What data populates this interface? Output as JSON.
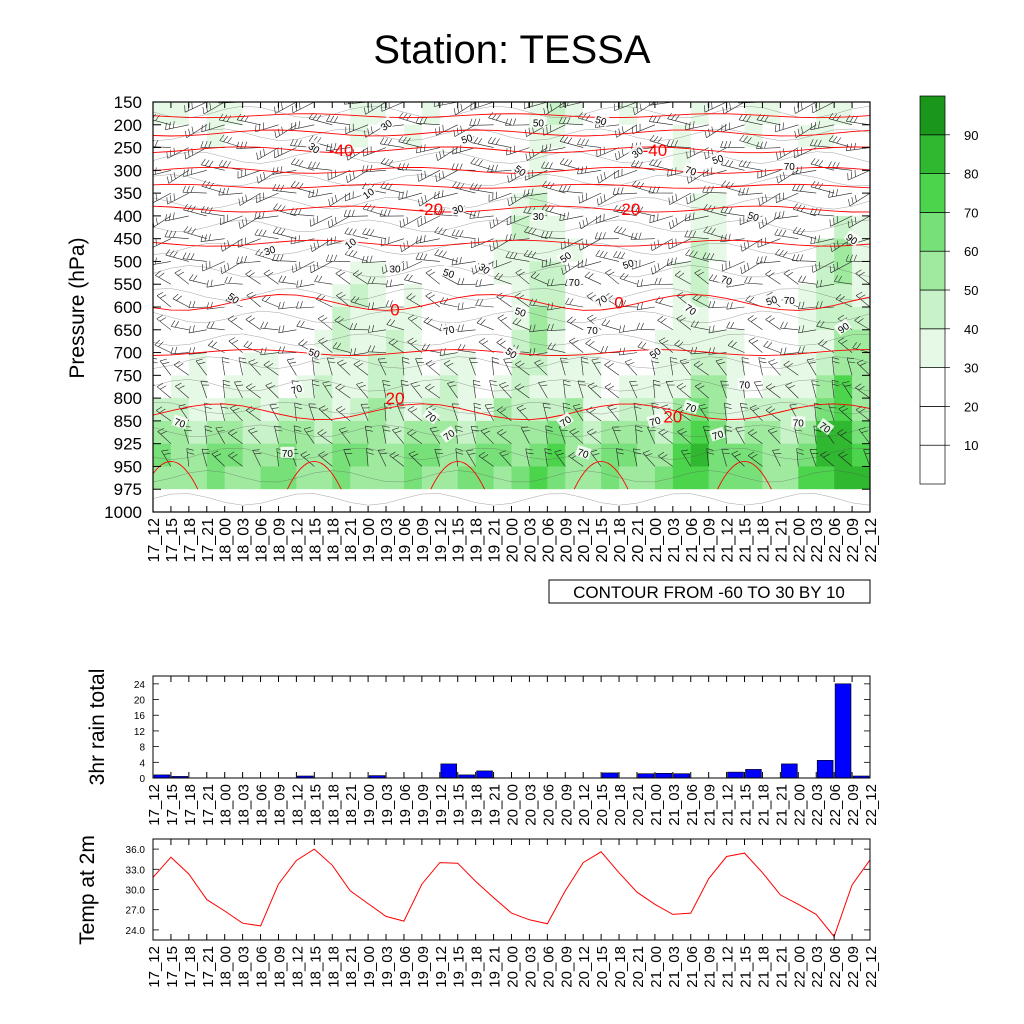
{
  "title": "Station: TESSA",
  "time_labels": [
    "17_12",
    "17_15",
    "17_18",
    "17_21",
    "18_00",
    "18_03",
    "18_06",
    "18_09",
    "18_12",
    "18_15",
    "18_18",
    "18_21",
    "19_00",
    "19_03",
    "19_06",
    "19_09",
    "19_12",
    "19_15",
    "19_18",
    "19_21",
    "20_00",
    "20_03",
    "20_06",
    "20_09",
    "20_12",
    "20_15",
    "20_18",
    "20_21",
    "21_00",
    "21_03",
    "21_06",
    "21_09",
    "21_12",
    "21_15",
    "21_18",
    "21_21",
    "22_00",
    "22_03",
    "22_06",
    "22_09",
    "22_12"
  ],
  "chart_data": [
    {
      "type": "heatmap",
      "name": "pressure-time-cross-section",
      "ylabel": "Pressure (hPa)",
      "pressure_levels": [
        150,
        200,
        250,
        300,
        350,
        400,
        450,
        500,
        550,
        600,
        650,
        700,
        750,
        800,
        850,
        925,
        950,
        975,
        1000
      ],
      "info_box": "CONTOUR FROM -60 TO 30 BY 10",
      "colorbar": {
        "levels": [
          10,
          20,
          30,
          40,
          50,
          60,
          70,
          80,
          90
        ],
        "labels": [
          "10",
          "20",
          "30",
          "40",
          "50",
          "60",
          "70",
          "80",
          "90"
        ],
        "colors": [
          "#ffffff",
          "#ffffff",
          "#ffffff",
          "#e6f9e6",
          "#c8f2c8",
          "#a0eaa0",
          "#78e078",
          "#4cd44c",
          "#30b830",
          "#1a961a"
        ]
      },
      "temperature_contours": [
        {
          "label": "-40",
          "pressure": 255,
          "x_index": 10.5
        },
        {
          "label": "-40",
          "pressure": 255,
          "x_index": 28.0
        },
        {
          "label": "-20",
          "pressure": 385,
          "x_index": 15.5
        },
        {
          "label": "-20",
          "pressure": 385,
          "x_index": 26.5
        },
        {
          "label": "0",
          "pressure": 605,
          "x_index": 13.5
        },
        {
          "label": "0",
          "pressure": 590,
          "x_index": 26.0
        },
        {
          "label": "20",
          "pressure": 800,
          "x_index": 13.5
        },
        {
          "label": "20",
          "pressure": 840,
          "x_index": 29.0
        }
      ],
      "humidity_labels": [
        {
          "label": "30",
          "pressure": 200,
          "x_index": 13.0
        },
        {
          "label": "50",
          "pressure": 230,
          "x_index": 17.5
        },
        {
          "label": "50",
          "pressure": 195,
          "x_index": 21.5
        },
        {
          "label": "50",
          "pressure": 190,
          "x_index": 25.0
        },
        {
          "label": "30",
          "pressure": 250,
          "x_index": 9.0
        },
        {
          "label": "30",
          "pressure": 260,
          "x_index": 27.0
        },
        {
          "label": "50",
          "pressure": 275,
          "x_index": 31.5
        },
        {
          "label": "70",
          "pressure": 290,
          "x_index": 35.5
        },
        {
          "label": "70",
          "pressure": 300,
          "x_index": 30.0
        },
        {
          "label": "50",
          "pressure": 300,
          "x_index": 20.5
        },
        {
          "label": "10",
          "pressure": 350,
          "x_index": 12.0
        },
        {
          "label": "30",
          "pressure": 385,
          "x_index": 17.0
        },
        {
          "label": "30",
          "pressure": 400,
          "x_index": 21.5
        },
        {
          "label": "50",
          "pressure": 400,
          "x_index": 33.5
        },
        {
          "label": "90",
          "pressure": 450,
          "x_index": 39.0
        },
        {
          "label": "10",
          "pressure": 460,
          "x_index": 11.0
        },
        {
          "label": "30",
          "pressure": 475,
          "x_index": 6.5
        },
        {
          "label": "30",
          "pressure": 515,
          "x_index": 13.5
        },
        {
          "label": "50",
          "pressure": 525,
          "x_index": 16.5
        },
        {
          "label": "30",
          "pressure": 515,
          "x_index": 18.5
        },
        {
          "label": "50",
          "pressure": 490,
          "x_index": 23.0
        },
        {
          "label": "50",
          "pressure": 505,
          "x_index": 26.5
        },
        {
          "label": "70",
          "pressure": 545,
          "x_index": 23.5
        },
        {
          "label": "70",
          "pressure": 540,
          "x_index": 32.0
        },
        {
          "label": "50",
          "pressure": 580,
          "x_index": 4.5
        },
        {
          "label": "70",
          "pressure": 585,
          "x_index": 25.0
        },
        {
          "label": "50",
          "pressure": 585,
          "x_index": 34.5
        },
        {
          "label": "70",
          "pressure": 585,
          "x_index": 35.5
        },
        {
          "label": "50",
          "pressure": 610,
          "x_index": 20.5
        },
        {
          "label": "70",
          "pressure": 605,
          "x_index": 30.0
        },
        {
          "label": "90",
          "pressure": 645,
          "x_index": 38.5
        },
        {
          "label": "70",
          "pressure": 650,
          "x_index": 16.5
        },
        {
          "label": "70",
          "pressure": 650,
          "x_index": 24.5
        },
        {
          "label": "50",
          "pressure": 700,
          "x_index": 9.0
        },
        {
          "label": "50",
          "pressure": 700,
          "x_index": 20.0
        },
        {
          "label": "50",
          "pressure": 700,
          "x_index": 28.0
        },
        {
          "label": "70",
          "pressure": 780,
          "x_index": 8.0
        },
        {
          "label": "70",
          "pressure": 770,
          "x_index": 33.0
        },
        {
          "label": "70",
          "pressure": 820,
          "x_index": 30.0
        },
        {
          "label": "70",
          "pressure": 840,
          "x_index": 15.5
        },
        {
          "label": "70",
          "pressure": 850,
          "x_index": 23.0
        },
        {
          "label": "70",
          "pressure": 850,
          "x_index": 28.0
        },
        {
          "label": "70",
          "pressure": 855,
          "x_index": 36.0
        },
        {
          "label": "70",
          "pressure": 855,
          "x_index": 1.5
        },
        {
          "label": "70",
          "pressure": 870,
          "x_index": 37.5
        },
        {
          "label": "70",
          "pressure": 895,
          "x_index": 16.5
        },
        {
          "label": "70",
          "pressure": 895,
          "x_index": 31.5
        },
        {
          "label": "70",
          "pressure": 935,
          "x_index": 7.5
        },
        {
          "label": "70",
          "pressure": 935,
          "x_index": 24.0
        }
      ]
    },
    {
      "type": "bar",
      "name": "rain",
      "ylabel": "3hr rain total",
      "ylim": [
        0,
        26
      ],
      "yticks": [
        0,
        4,
        8,
        12,
        16,
        20,
        24
      ],
      "color": "#0000ff",
      "values": [
        0.8,
        0.4,
        0,
        0,
        0,
        0,
        0,
        0,
        0.5,
        0,
        0,
        0,
        0.6,
        0,
        0,
        0,
        3.6,
        0.8,
        1.8,
        0,
        0,
        0,
        0,
        0,
        0,
        1.3,
        0,
        1.1,
        1.2,
        1.1,
        0,
        0,
        1.5,
        2.2,
        0,
        3.6,
        0,
        4.5,
        24.0,
        0.5
      ]
    },
    {
      "type": "line",
      "name": "temperature",
      "ylabel": "Temp at 2m",
      "ylim": [
        22.5,
        37.5
      ],
      "yticks": [
        "24.0",
        "27.0",
        "30.0",
        "33.0",
        "36.0"
      ],
      "color": "#ff0000",
      "values": [
        31.8,
        34.8,
        32.3,
        28.5,
        26.8,
        25.0,
        24.6,
        30.8,
        34.3,
        36.0,
        33.6,
        29.8,
        27.9,
        26.0,
        25.3,
        30.8,
        34.0,
        33.9,
        31.2,
        28.8,
        26.5,
        25.5,
        24.9,
        29.8,
        34.0,
        35.6,
        32.5,
        29.6,
        27.8,
        26.3,
        26.5,
        31.6,
        34.9,
        35.4,
        32.5,
        29.2,
        27.8,
        26.3,
        23.0,
        30.7,
        34.4
      ]
    }
  ]
}
